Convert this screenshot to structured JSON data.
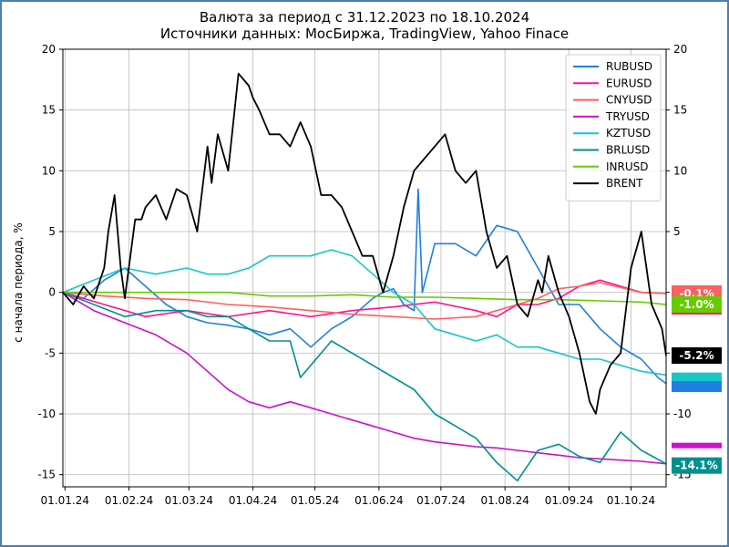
{
  "chart_data": {
    "type": "line",
    "title": "Валюта за период с 31.12.2023 по 18.10.2024",
    "subtitle": "Источники данных: МосБиржа, TradingView, Yahoo Finace",
    "ylabel": "с начала периода, %",
    "ylim": [
      -16,
      20
    ],
    "yticks": [
      -15,
      -10,
      -5,
      0,
      5,
      10,
      15,
      20
    ],
    "xlim": [
      0,
      292
    ],
    "xticks": [
      {
        "label": "01.01.24",
        "day": 1
      },
      {
        "label": "01.02.24",
        "day": 32
      },
      {
        "label": "01.03.24",
        "day": 61
      },
      {
        "label": "01.04.24",
        "day": 92
      },
      {
        "label": "01.05.24",
        "day": 122
      },
      {
        "label": "01.06.24",
        "day": 153
      },
      {
        "label": "01.07.24",
        "day": 183
      },
      {
        "label": "01.08.24",
        "day": 214
      },
      {
        "label": "01.09.24",
        "day": 245
      },
      {
        "label": "01.10.24",
        "day": 275
      }
    ],
    "grid": true,
    "legend_position": "top-right",
    "series": [
      {
        "name": "RUBUSD",
        "color": "#1f7fe0",
        "x": [
          0,
          10,
          20,
          30,
          40,
          50,
          60,
          70,
          80,
          90,
          100,
          110,
          120,
          130,
          140,
          150,
          155,
          160,
          165,
          170,
          172,
          174,
          180,
          190,
          200,
          210,
          220,
          230,
          240,
          250,
          260,
          270,
          280,
          288,
          292
        ],
        "y": [
          0,
          -0.5,
          1,
          2,
          0.5,
          -1,
          -2,
          -2.5,
          -2.7,
          -3,
          -3.5,
          -3,
          -4.5,
          -3,
          -2,
          -0.5,
          0,
          0.3,
          -1,
          -1.5,
          8.5,
          0,
          4,
          4,
          3,
          5.5,
          5,
          2,
          -1,
          -1,
          -3,
          -4.5,
          -5.5,
          -7,
          -7.5
        ]
      },
      {
        "name": "EURUSD",
        "color": "#ff1493",
        "x": [
          0,
          20,
          40,
          60,
          80,
          100,
          120,
          140,
          160,
          180,
          200,
          210,
          220,
          230,
          240,
          250,
          260,
          270,
          280,
          292
        ],
        "y": [
          0,
          -1,
          -2,
          -1.5,
          -2,
          -1.5,
          -2,
          -1.5,
          -1.2,
          -0.8,
          -1.5,
          -2,
          -1,
          -1,
          -0.5,
          0.5,
          1,
          0.5,
          0,
          -0.1
        ]
      },
      {
        "name": "CNYUSD",
        "color": "#ff6060",
        "x": [
          0,
          20,
          40,
          60,
          80,
          100,
          120,
          140,
          160,
          180,
          200,
          210,
          220,
          230,
          240,
          250,
          260,
          270,
          280,
          292
        ],
        "y": [
          0,
          -0.3,
          -0.5,
          -0.6,
          -1,
          -1.2,
          -1.5,
          -1.8,
          -2,
          -2.2,
          -2,
          -1.5,
          -1,
          -0.5,
          0.3,
          0.5,
          0.8,
          0.4,
          0,
          -0.1
        ]
      },
      {
        "name": "TRYUSD",
        "color": "#cc11cc",
        "x": [
          0,
          15,
          30,
          45,
          60,
          70,
          80,
          90,
          100,
          110,
          120,
          130,
          140,
          150,
          160,
          170,
          180,
          190,
          200,
          210,
          220,
          230,
          240,
          250,
          260,
          270,
          280,
          292
        ],
        "y": [
          0,
          -1.5,
          -2.5,
          -3.5,
          -5,
          -6.5,
          -8,
          -9,
          -9.5,
          -9,
          -9.5,
          -10,
          -10.5,
          -11,
          -11.5,
          -12,
          -12.3,
          -12.5,
          -12.7,
          -12.8,
          -13,
          -13.2,
          -13.4,
          -13.6,
          -13.7,
          -13.8,
          -13.9,
          -14.1
        ]
      },
      {
        "name": "KZTUSD",
        "color": "#17c7c7",
        "x": [
          0,
          15,
          30,
          45,
          60,
          70,
          80,
          90,
          100,
          110,
          120,
          130,
          140,
          150,
          160,
          170,
          180,
          190,
          200,
          210,
          220,
          230,
          240,
          250,
          260,
          270,
          280,
          292
        ],
        "y": [
          0,
          1,
          2,
          1.5,
          2,
          1.5,
          1.5,
          2,
          3,
          3,
          3,
          3.5,
          3,
          1.5,
          0,
          -1,
          -3,
          -3.5,
          -4,
          -3.5,
          -4.5,
          -4.5,
          -5,
          -5.5,
          -5.5,
          -6,
          -6.5,
          -6.8
        ]
      },
      {
        "name": "BRLUSD",
        "color": "#009090",
        "x": [
          0,
          15,
          30,
          45,
          60,
          70,
          80,
          90,
          100,
          110,
          115,
          120,
          130,
          140,
          150,
          160,
          170,
          180,
          190,
          200,
          210,
          220,
          230,
          240,
          250,
          260,
          270,
          280,
          292
        ],
        "y": [
          0,
          -1,
          -2,
          -1.5,
          -1.5,
          -2,
          -2,
          -3,
          -4,
          -4,
          -7,
          -6,
          -4,
          -5,
          -6,
          -7,
          -8,
          -10,
          -11,
          -12,
          -14,
          -15.5,
          -13,
          -12.5,
          -13.5,
          -14,
          -11.5,
          -13,
          -14.1
        ]
      },
      {
        "name": "INRUSD",
        "color": "#66cc00",
        "x": [
          0,
          30,
          60,
          80,
          100,
          120,
          140,
          160,
          180,
          200,
          220,
          240,
          260,
          280,
          292
        ],
        "y": [
          0,
          0,
          0,
          0,
          -0.3,
          -0.3,
          -0.2,
          -0.4,
          -0.4,
          -0.5,
          -0.6,
          -0.6,
          -0.7,
          -0.8,
          -1.0
        ]
      },
      {
        "name": "BRENT",
        "color": "#000000",
        "x": [
          0,
          5,
          10,
          15,
          20,
          22,
          25,
          28,
          30,
          35,
          38,
          40,
          45,
          50,
          55,
          60,
          65,
          70,
          72,
          75,
          80,
          85,
          90,
          92,
          95,
          100,
          105,
          110,
          115,
          120,
          125,
          130,
          135,
          140,
          145,
          150,
          155,
          160,
          165,
          170,
          175,
          180,
          185,
          190,
          195,
          200,
          205,
          210,
          215,
          220,
          225,
          230,
          232,
          235,
          240,
          245,
          250,
          255,
          258,
          260,
          265,
          270,
          275,
          280,
          285,
          290,
          292
        ],
        "y": [
          0,
          -1,
          0.5,
          -0.5,
          2,
          5,
          8,
          2,
          -0.5,
          6,
          6,
          7,
          8,
          6,
          8.5,
          8,
          5,
          12,
          9,
          13,
          10,
          18,
          17,
          16,
          15,
          13,
          13,
          12,
          14,
          12,
          8,
          8,
          7,
          5,
          3,
          3,
          0,
          3,
          7,
          10,
          11,
          12,
          13,
          10,
          9,
          10,
          5,
          2,
          3,
          -1,
          -2,
          1,
          0,
          3,
          0,
          -2,
          -5,
          -9,
          -10,
          -8,
          -6,
          -5,
          2,
          5,
          -1,
          -3,
          -5.2
        ]
      }
    ],
    "end_labels": [
      {
        "text": "-0.1%",
        "color": "#ff6060",
        "value": -0.1
      },
      {
        "text": "-1.0%",
        "color": "#66cc00",
        "value": -1.0
      },
      {
        "text": "-5.2%",
        "color": "#000000",
        "value": -5.2
      },
      {
        "text": "-14.1%",
        "color": "#009090",
        "value": -14.1
      }
    ]
  }
}
